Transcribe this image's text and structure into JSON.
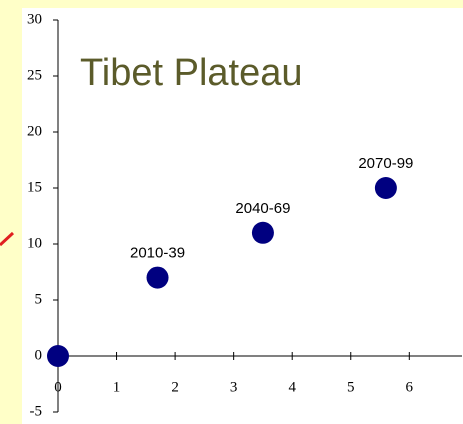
{
  "chart_data": {
    "type": "scatter",
    "title": "Tibet Plateau",
    "x": [
      0,
      1.7,
      3.5,
      5.6
    ],
    "values": [
      0,
      7,
      11,
      15
    ],
    "point_labels": [
      null,
      "2010-39",
      "2040-69",
      "2070-99"
    ],
    "color": "#000080",
    "xlim": [
      0,
      6.9
    ],
    "xticks": [
      0,
      1,
      2,
      3,
      4,
      5,
      6
    ],
    "ylim": [
      -5,
      30
    ],
    "yticks": [
      -5,
      0,
      5,
      10,
      15,
      20,
      25,
      30
    ]
  }
}
